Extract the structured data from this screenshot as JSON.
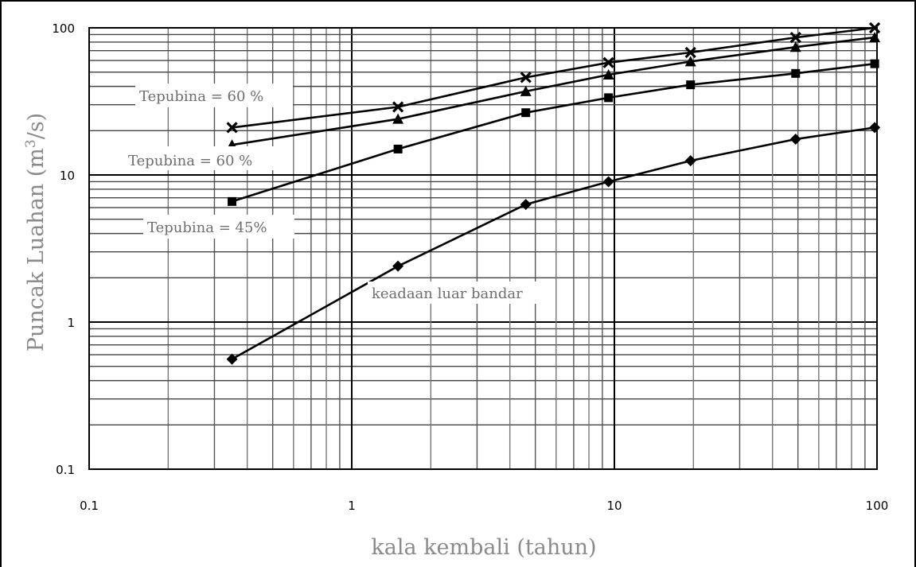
{
  "chart_data": {
    "type": "line",
    "x_scale": "log",
    "y_scale": "log",
    "xlim": [
      0.1,
      100
    ],
    "ylim": [
      0.1,
      100
    ],
    "grid": true,
    "xlabel": "kala kembali (tahun)",
    "ylabel_main": "Puncak Luahan (m",
    "ylabel_sup": "3",
    "ylabel_tail": "/s)",
    "x_tick_labels": [
      "0.1",
      "1",
      "10",
      "100"
    ],
    "y_tick_labels": [
      "0.1",
      "1",
      "10",
      "100"
    ],
    "x": [
      0.35,
      1.5,
      4.6,
      9.5,
      19.5,
      49,
      98
    ],
    "series": [
      {
        "marker": "x",
        "values": [
          21,
          29,
          46,
          58,
          68,
          86,
          100
        ]
      },
      {
        "marker": "triangle",
        "values": [
          16,
          24,
          37,
          48,
          59,
          74,
          86
        ]
      },
      {
        "marker": "square",
        "values": [
          6.6,
          15,
          26.5,
          33.5,
          41,
          49,
          57
        ]
      },
      {
        "marker": "diamond",
        "values": [
          0.56,
          2.4,
          6.3,
          9,
          12.5,
          17.5,
          21
        ]
      }
    ],
    "annotations": [
      "Tepubina = 60 %",
      "Tepubina = 60 %",
      "Tepubina = 45%",
      "keadaan luar bandar"
    ]
  }
}
